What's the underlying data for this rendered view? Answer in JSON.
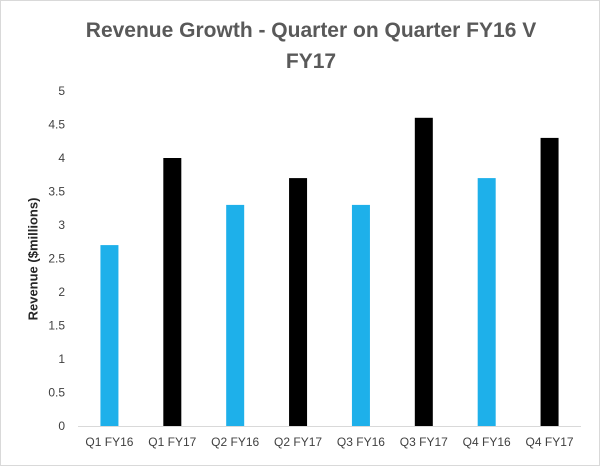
{
  "chart_data": {
    "type": "bar",
    "title_line1": "Revenue Growth - Quarter on Quarter FY16 V",
    "title_line2": "FY17",
    "xlabel": "",
    "ylabel": "Revenue ($millions)",
    "categories": [
      "Q1 FY16",
      "Q1 FY17",
      "Q2 FY16",
      "Q2 FY17",
      "Q3 FY16",
      "Q3 FY17",
      "Q4 FY16",
      "Q4 FY17"
    ],
    "values": [
      2.7,
      4.0,
      3.3,
      3.7,
      3.3,
      4.6,
      3.7,
      4.3
    ],
    "bar_colors": [
      "#1eb0ea",
      "#000000",
      "#1eb0ea",
      "#000000",
      "#1eb0ea",
      "#000000",
      "#1eb0ea",
      "#000000"
    ],
    "ylim": [
      0,
      5
    ],
    "yticks": [
      "0",
      "0.5",
      "1",
      "1.5",
      "2",
      "2.5",
      "3",
      "3.5",
      "4",
      "4.5",
      "5"
    ],
    "grid": false,
    "legend": "none"
  }
}
